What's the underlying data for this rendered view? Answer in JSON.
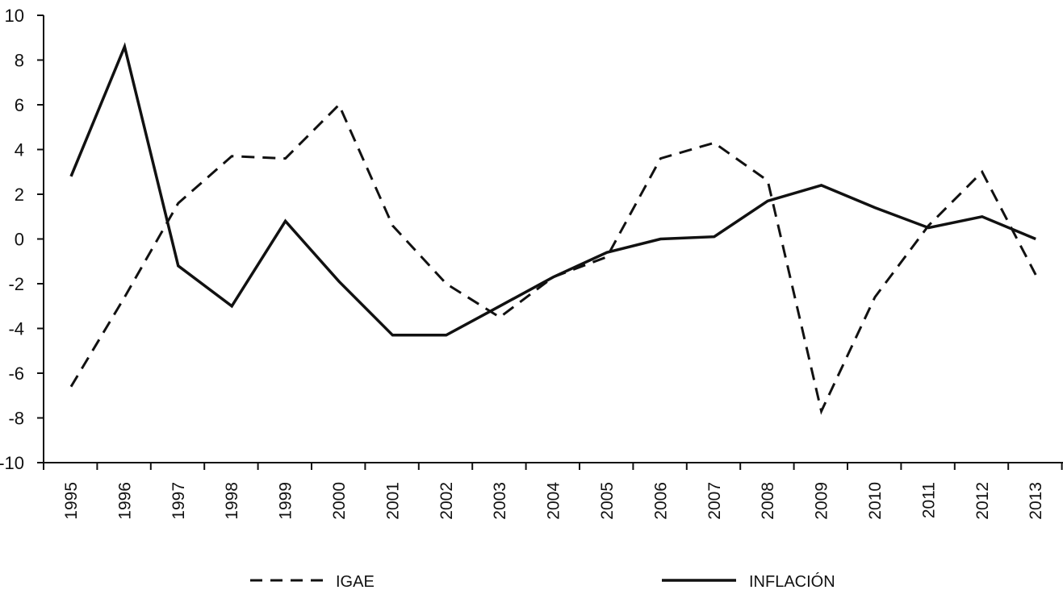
{
  "chart_data": {
    "type": "line",
    "categories": [
      "1995",
      "1996",
      "1997",
      "1998",
      "1999",
      "2000",
      "2001",
      "2002",
      "2003",
      "2004",
      "2005",
      "2006",
      "2007",
      "2008",
      "2009",
      "2010",
      "2011",
      "2012",
      "2013"
    ],
    "series": [
      {
        "name": "IGAE",
        "style": "dashed",
        "values": [
          -6.6,
          -2.6,
          1.6,
          3.7,
          3.6,
          6.0,
          0.6,
          -2.0,
          -3.5,
          -1.7,
          -0.8,
          3.6,
          4.3,
          2.6,
          -7.7,
          -2.6,
          0.6,
          3.0,
          -1.6
        ]
      },
      {
        "name": "INFLACIÓN",
        "style": "solid",
        "values": [
          2.8,
          8.6,
          -1.2,
          -3.0,
          0.8,
          -1.9,
          -4.3,
          -4.3,
          -3.0,
          -1.7,
          -0.6,
          0.0,
          0.1,
          1.7,
          2.4,
          1.4,
          0.5,
          1.0,
          0.0
        ]
      }
    ],
    "ylim": [
      -10,
      10
    ],
    "yticks": [
      "10",
      "8",
      "6",
      "4",
      "2",
      "0",
      "-2",
      "-4",
      "-6",
      "-8",
      "-10"
    ],
    "xlabel": "",
    "ylabel": "",
    "title": "",
    "grid": false,
    "legend_position": "bottom",
    "colors": {
      "line": "#111111",
      "axis": "#111111"
    }
  }
}
